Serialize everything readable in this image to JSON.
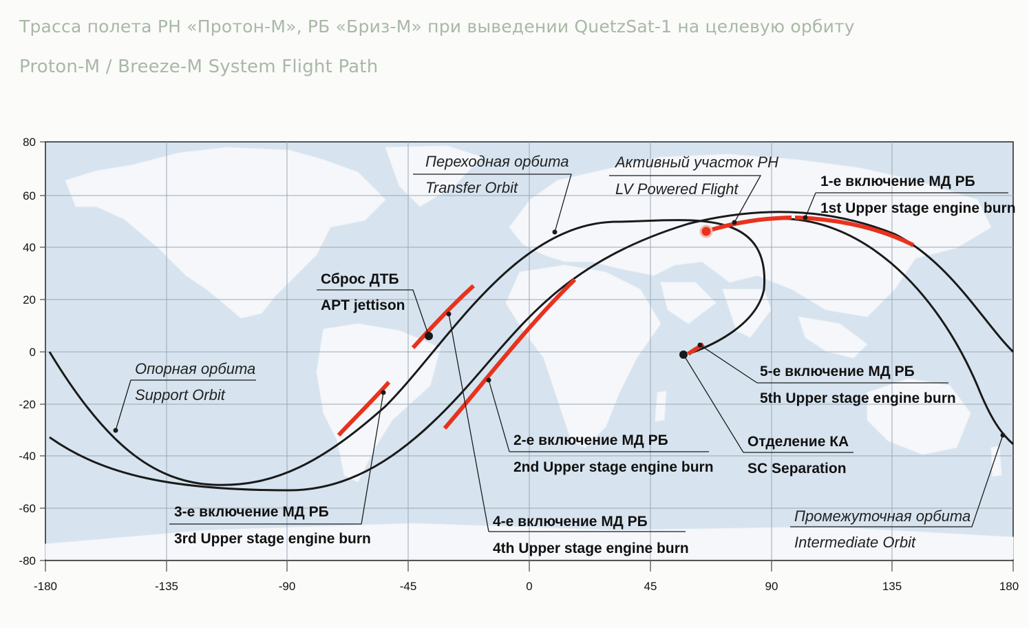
{
  "title_ru": "Трасса полета РН «Протон-М», РБ «Бриз-М» при выведении QuetzSat-1 на целевую орбиту",
  "title_en": "Proton-M / Breeze-M System Flight Path",
  "axes": {
    "x_ticks": [
      "-180",
      "-135",
      "-90",
      "-45",
      "0",
      "45",
      "90",
      "135",
      "180"
    ],
    "y_ticks": [
      "80",
      "60",
      "40",
      "20",
      "0",
      "-20",
      "-40",
      "-60",
      "-80"
    ]
  },
  "labels": {
    "transfer_ru": "Переходная орбита",
    "transfer_en": "Transfer Orbit",
    "lv_ru": "Активный участок РН",
    "lv_en": "LV Powered Flight",
    "burn1_ru": "1-е включение МД РБ",
    "burn1_en": "1st Upper stage engine burn",
    "apt_ru": "Сброс ДТБ",
    "apt_en": "APT jettison",
    "support_ru": "Опорная орбита",
    "support_en": "Support Orbit",
    "burn5_ru": "5-е включение МД РБ",
    "burn5_en": "5th Upper stage engine burn",
    "burn2_ru": "2-е включение МД РБ",
    "burn2_en": "2nd Upper stage engine burn",
    "sep_ru": "Отделение КА",
    "sep_en": "SC Separation",
    "burn3_ru": "3-е включение МД РБ",
    "burn3_en": "3rd Upper stage engine burn",
    "burn4_ru": "4-е включение МД РБ",
    "burn4_en": "4th Upper stage engine burn",
    "intermediate_ru": "Промежуточная орбита",
    "intermediate_en": "Intermediate Orbit"
  },
  "colors": {
    "burn": "#e8321e",
    "track": "#1a1a1a",
    "ocean": "#d7e4ef",
    "land": "#f6f8fa"
  }
}
